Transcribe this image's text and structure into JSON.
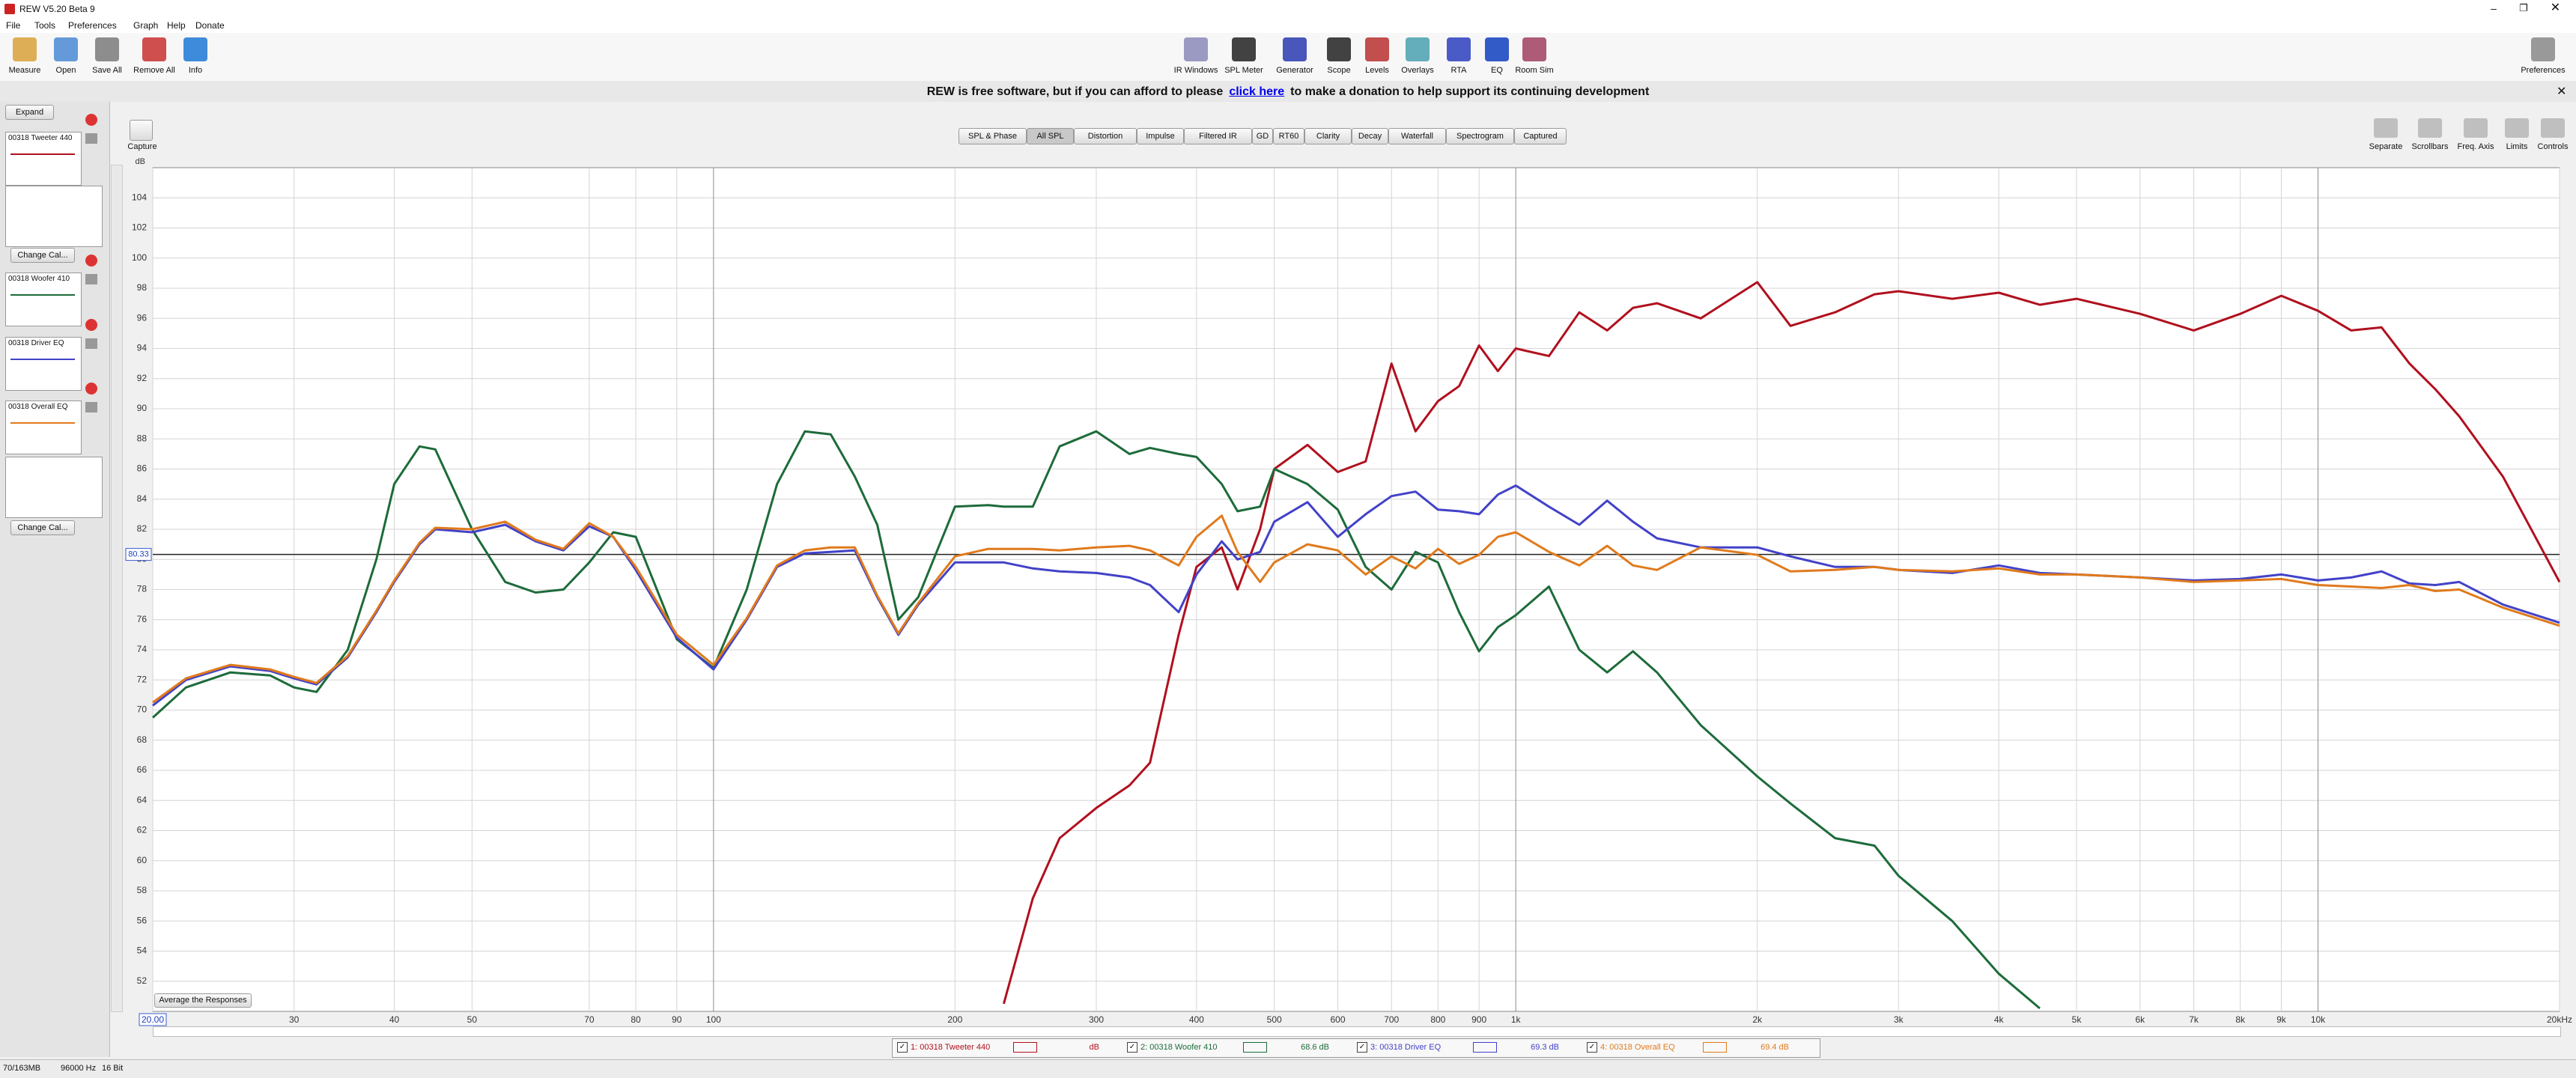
{
  "window": {
    "title": "REW V5.20 Beta 9"
  },
  "menu": [
    "File",
    "Tools",
    "Preferences",
    "Graph",
    "Help",
    "Donate"
  ],
  "toolbar_left": [
    "Measure",
    "Open",
    "Save All",
    "Remove All",
    "Info"
  ],
  "toolbar_center": [
    "IR Windows",
    "SPL Meter",
    "Generator",
    "Scope",
    "Levels",
    "Overlays",
    "RTA",
    "EQ",
    "Room Sim"
  ],
  "toolbar_right": [
    "Preferences"
  ],
  "banner": {
    "text_before": "REW is free software, but if you can afford to please",
    "link": "click here",
    "text_after": "to make a donation to help support its continuing development"
  },
  "measurements_panel": {
    "expand": "Expand",
    "items": [
      "00318 Tweeter 440",
      "00318 Woofer 410",
      "00318 Driver EQ",
      "00318 Overall EQ"
    ],
    "change_cal": "Change Cal..."
  },
  "graph_tabs": [
    "SPL & Phase",
    "All SPL",
    "Distortion",
    "Impulse",
    "Filtered IR",
    "GD",
    "RT60",
    "Clarity",
    "Decay",
    "Waterfall",
    "Spectrogram",
    "Captured"
  ],
  "capture": "Capture",
  "graph_controls": [
    "Separate",
    "Scrollbars",
    "Freq. Axis",
    "Limits",
    "Controls"
  ],
  "average_button": "Average the Responses",
  "status_bar": [
    "70/163MB",
    "96000 Hz",
    "16 Bit"
  ],
  "chart_data": {
    "type": "line",
    "y_unit": "dB",
    "log_x": true,
    "grid": true,
    "xlim": [
      20,
      20000
    ],
    "ylim": [
      50,
      106
    ],
    "xticks": [
      {
        "value": 20,
        "label": "20.00"
      },
      30,
      40,
      50,
      70,
      80,
      90,
      100,
      200,
      300,
      400,
      500,
      600,
      700,
      800,
      900,
      {
        "value": 1000,
        "label": "1k"
      },
      {
        "value": 2000,
        "label": "2k"
      },
      {
        "value": 3000,
        "label": "3k"
      },
      {
        "value": 4000,
        "label": "4k"
      },
      {
        "value": 5000,
        "label": "5k"
      },
      {
        "value": 6000,
        "label": "6k"
      },
      {
        "value": 7000,
        "label": "7k"
      },
      {
        "value": 8000,
        "label": "8k"
      },
      {
        "value": 9000,
        "label": "9k"
      },
      {
        "value": 10000,
        "label": "10k"
      },
      {
        "value": 20000,
        "label": "20kHz"
      }
    ],
    "yticks": [
      52,
      54,
      56,
      58,
      60,
      62,
      64,
      66,
      68,
      70,
      72,
      74,
      76,
      78,
      80,
      82,
      84,
      86,
      88,
      90,
      92,
      94,
      96,
      98,
      100,
      102,
      104
    ],
    "y_cursor": 80.33,
    "x": [
      20,
      22,
      25,
      28,
      30,
      32,
      35,
      38,
      40,
      43,
      45,
      50,
      55,
      60,
      65,
      70,
      75,
      80,
      90,
      100,
      110,
      120,
      130,
      140,
      150,
      160,
      170,
      180,
      200,
      220,
      230,
      250,
      270,
      300,
      330,
      350,
      380,
      400,
      430,
      450,
      480,
      500,
      550,
      600,
      650,
      700,
      750,
      800,
      850,
      900,
      950,
      1000,
      1100,
      1200,
      1300,
      1400,
      1500,
      1700,
      2000,
      2200,
      2500,
      2800,
      3000,
      3500,
      4000,
      4500,
      5000,
      6000,
      7000,
      8000,
      9000,
      10000,
      11000,
      12000,
      13000,
      14000,
      15000,
      17000,
      20000
    ],
    "series": [
      {
        "name": "1: 00318 Tweeter 440",
        "legend_value": "dB",
        "color": "#b0101e",
        "values": [
          null,
          null,
          null,
          null,
          null,
          null,
          null,
          null,
          null,
          null,
          null,
          null,
          null,
          null,
          null,
          null,
          null,
          null,
          null,
          null,
          null,
          null,
          null,
          null,
          null,
          null,
          null,
          null,
          null,
          null,
          50.5,
          57.5,
          61.5,
          63.5,
          65,
          66.5,
          75,
          79.5,
          80.8,
          78,
          82,
          86,
          87.6,
          85.8,
          86.5,
          93,
          88.5,
          90.5,
          91.5,
          94.2,
          92.5,
          94,
          93.5,
          96.4,
          95.2,
          96.7,
          97,
          96,
          98.4,
          95.5,
          96.4,
          97.6,
          97.8,
          97.3,
          97.7,
          96.9,
          97.3,
          96.3,
          95.2,
          96.3,
          97.5,
          96.5,
          95.2,
          95.4,
          93,
          91.3,
          89.5,
          85.5,
          78.5
        ]
      },
      {
        "name": "2: 00318 Woofer 410",
        "legend_value": "68.6 dB",
        "color": "#1d6b3a",
        "values": [
          69.5,
          71.5,
          72.5,
          72.3,
          71.5,
          71.2,
          74,
          80,
          85,
          87.5,
          87.3,
          82,
          78.5,
          77.8,
          78,
          79.8,
          81.8,
          81.5,
          74.7,
          72.8,
          78,
          85,
          88.5,
          88.3,
          85.5,
          82.3,
          76,
          77.5,
          83.5,
          83.6,
          83.5,
          83.5,
          87.5,
          88.5,
          87,
          87.4,
          87,
          86.8,
          85,
          83.2,
          83.5,
          86,
          85,
          83.3,
          79.5,
          78,
          80.5,
          79.8,
          76.5,
          73.9,
          75.5,
          76.3,
          78.2,
          74,
          72.5,
          73.9,
          72.5,
          69,
          65.6,
          63.8,
          61.5,
          61,
          59,
          56,
          52.5,
          50.2,
          null,
          null,
          null,
          null,
          null,
          null,
          null,
          null,
          null,
          null,
          null,
          null,
          null
        ]
      },
      {
        "name": "3: 00318 Driver EQ",
        "legend_value": "69.3 dB",
        "color": "#4242c8",
        "values": [
          70.3,
          72,
          72.9,
          72.6,
          72.1,
          71.7,
          73.5,
          76.5,
          78.5,
          81,
          82,
          81.8,
          82.3,
          81.2,
          80.6,
          82.2,
          81.5,
          79.3,
          74.8,
          72.7,
          76,
          79.5,
          80.4,
          80.5,
          80.6,
          77.5,
          75,
          77,
          79.8,
          79.8,
          79.8,
          79.4,
          79.2,
          79.1,
          78.8,
          78.3,
          76.5,
          79,
          81.2,
          80,
          80.5,
          82.5,
          83.8,
          81.5,
          83,
          84.2,
          84.5,
          83.3,
          83.2,
          83,
          84.3,
          84.9,
          83.5,
          82.3,
          83.9,
          82.5,
          81.4,
          80.8,
          80.8,
          80.2,
          79.5,
          79.5,
          79.3,
          79.1,
          79.6,
          79.1,
          79,
          78.8,
          78.6,
          78.7,
          79,
          78.6,
          78.8,
          79.2,
          78.4,
          78.3,
          78.5,
          77,
          75.8
        ]
      },
      {
        "name": "4: 00318 Overall EQ",
        "legend_value": "69.4 dB",
        "color": "#e07a1c",
        "values": [
          70.5,
          72.1,
          73,
          72.7,
          72.2,
          71.8,
          73.6,
          76.6,
          78.6,
          81.1,
          82.1,
          82,
          82.5,
          81.3,
          80.7,
          82.4,
          81.5,
          79.5,
          75,
          73,
          76.1,
          79.6,
          80.6,
          80.8,
          80.8,
          77.6,
          75.1,
          77.1,
          80.2,
          80.7,
          80.7,
          80.7,
          80.6,
          80.8,
          80.9,
          80.6,
          79.6,
          81.5,
          82.9,
          80.5,
          78.5,
          79.8,
          81,
          80.6,
          79,
          80.2,
          79.4,
          80.7,
          79.7,
          80.3,
          81.5,
          81.8,
          80.5,
          79.6,
          80.9,
          79.6,
          79.3,
          80.8,
          80.3,
          79.2,
          79.3,
          79.5,
          79.3,
          79.2,
          79.4,
          79,
          79,
          78.8,
          78.5,
          78.6,
          78.7,
          78.3,
          78.2,
          78.1,
          78.3,
          77.9,
          78,
          76.8,
          75.6
        ]
      }
    ]
  }
}
